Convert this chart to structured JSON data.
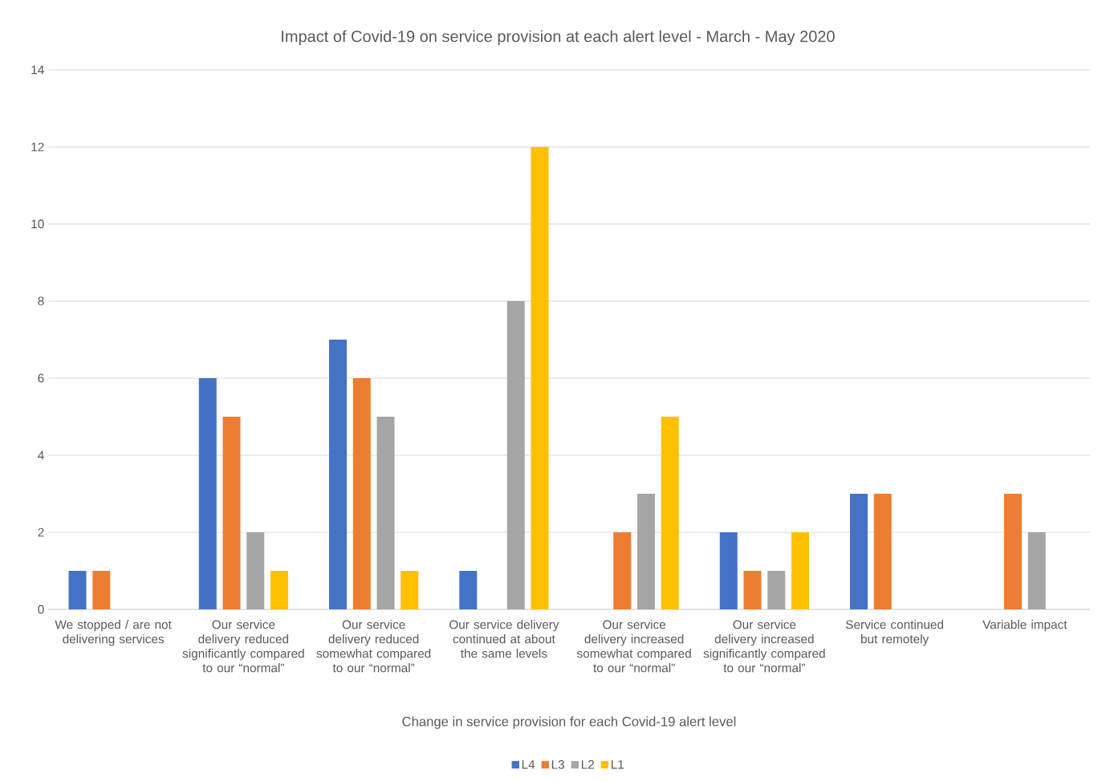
{
  "chart_data": {
    "type": "bar",
    "title": "Impact of Covid-19 on service provision at each alert level - March - May 2020",
    "xlabel": "Change in service provision for each Covid-19 alert level",
    "categories": [
      "We stopped / are not delivering services",
      "Our service delivery reduced significantly compared to our “normal”",
      "Our service delivery reduced somewhat compared to our “normal”",
      "Our service delivery continued at about the same levels",
      "Our service delivery increased somewhat compared to our “normal”",
      "Our service delivery increased significantly compared to our “normal”",
      "Service continued but remotely",
      "Variable impact"
    ],
    "series": [
      {
        "name": "L4",
        "color": "#4472c4",
        "values": [
          1,
          6,
          7,
          1,
          0,
          2,
          3,
          0
        ]
      },
      {
        "name": "L3",
        "color": "#ed7d31",
        "values": [
          1,
          5,
          6,
          0,
          2,
          1,
          3,
          3
        ]
      },
      {
        "name": "L2",
        "color": "#a5a5a5",
        "values": [
          0,
          2,
          5,
          8,
          3,
          1,
          0,
          2
        ]
      },
      {
        "name": "L1",
        "color": "#ffc000",
        "values": [
          0,
          1,
          1,
          12,
          5,
          2,
          0,
          0
        ]
      }
    ],
    "ylim": [
      0,
      14
    ],
    "yticks": [
      0,
      2,
      4,
      6,
      8,
      10,
      12,
      14
    ],
    "grid": "y",
    "legend": "bottom"
  }
}
